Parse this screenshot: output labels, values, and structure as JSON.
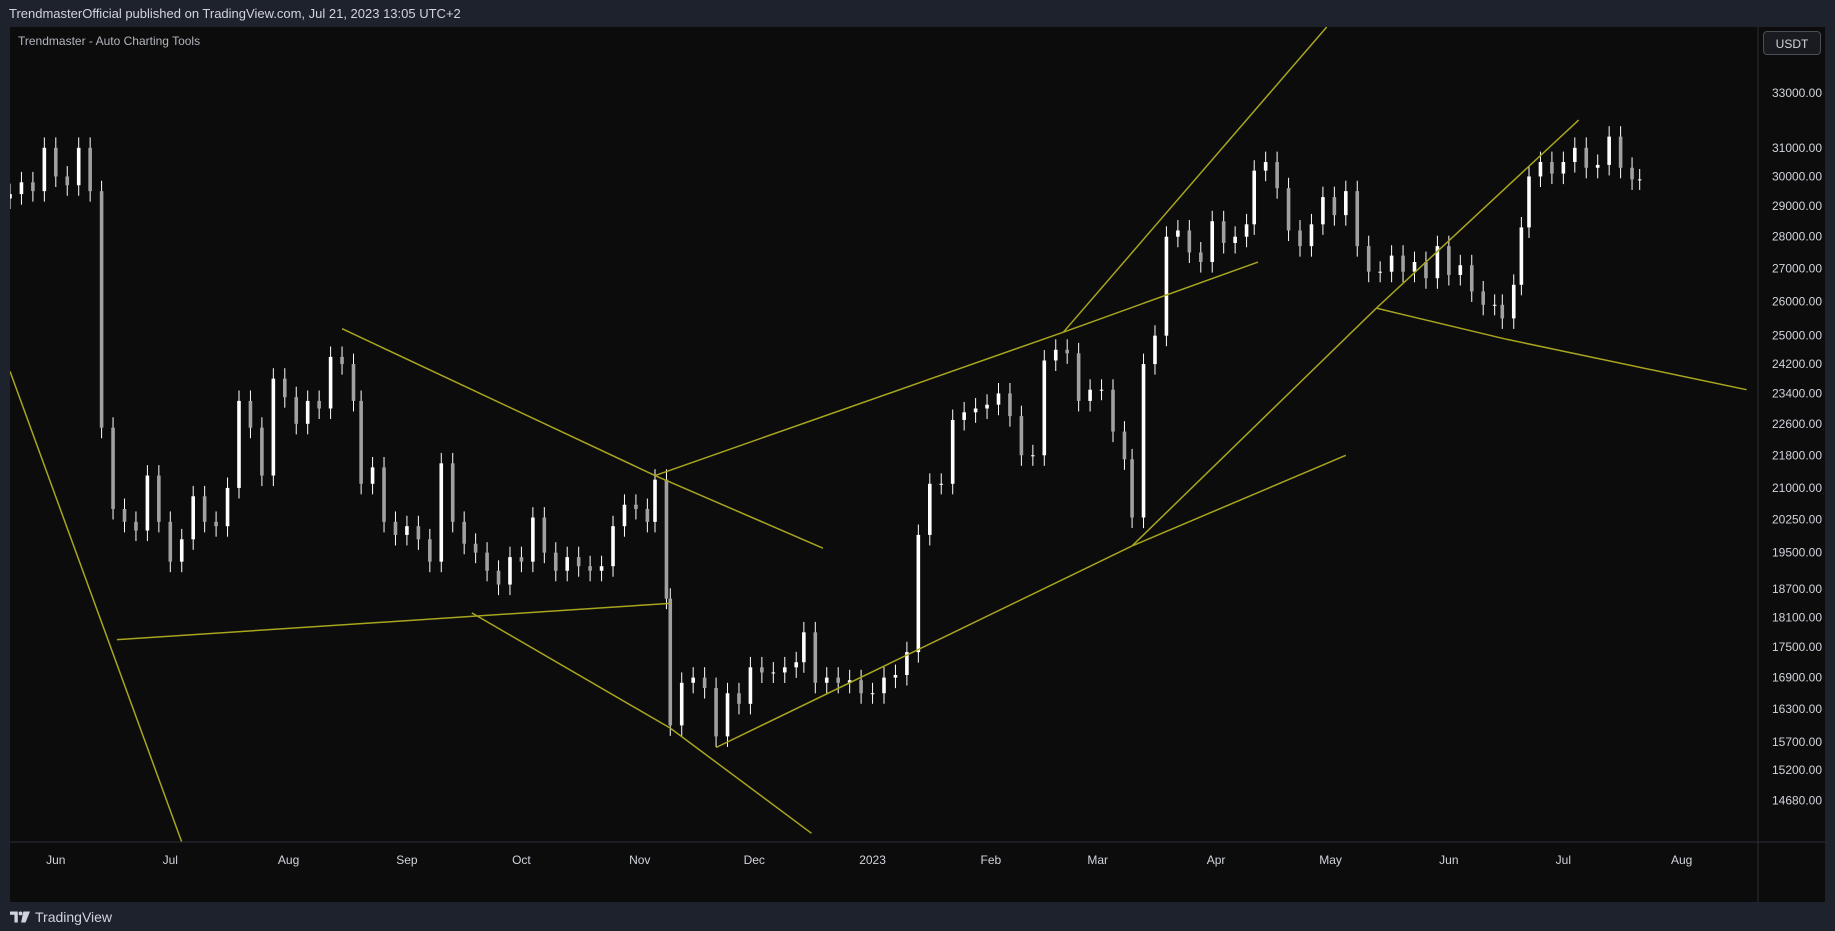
{
  "header": {
    "published_text": "TrendmasterOfficial published on TradingView.com, Jul 21, 2023 13:05 UTC+2"
  },
  "chart_header": {
    "title": "Trendmaster - Auto Charting Tools",
    "currency": "USDT"
  },
  "footer": {
    "logo_text": "TradingView",
    "logo_icon": "tradingview-logo-icon"
  },
  "colors": {
    "background": "#0c0c0c",
    "frame": "#1e222d",
    "candle": "#ffffff",
    "trendline": "#a8a51e",
    "text": "#d1d4dc",
    "axis_line": "#2a2e39"
  },
  "chart_data": {
    "type": "candlestick",
    "title": "Trendmaster - Auto Charting Tools",
    "y_scale": "log",
    "ylim": [
      14000,
      35600
    ],
    "x_range": [
      "2022-05-20",
      "2023-08-21"
    ],
    "y_ticks": [
      33000,
      31000,
      30000,
      29000,
      28000,
      27000,
      26000,
      25000,
      24200,
      23400,
      22600,
      21800,
      21000,
      20250,
      19500,
      18700,
      18100,
      17500,
      16900,
      16300,
      15700,
      15200,
      14680
    ],
    "y_tick_labels": [
      "33000.00",
      "31000.00",
      "30000.00",
      "29000.00",
      "28000.00",
      "27000.00",
      "26000.00",
      "25000.00",
      "24200.00",
      "23400.00",
      "22600.00",
      "21800.00",
      "21000.00",
      "20250.00",
      "19500.00",
      "18700.00",
      "18100.00",
      "17500.00",
      "16900.00",
      "16300.00",
      "15700.00",
      "15200.00",
      "14680.00"
    ],
    "x_ticks": [
      {
        "label": "Jun",
        "date": "2022-06-01"
      },
      {
        "label": "Jul",
        "date": "2022-07-01"
      },
      {
        "label": "Aug",
        "date": "2022-08-01"
      },
      {
        "label": "Sep",
        "date": "2022-09-01"
      },
      {
        "label": "Oct",
        "date": "2022-10-01"
      },
      {
        "label": "Nov",
        "date": "2022-11-01"
      },
      {
        "label": "Dec",
        "date": "2022-12-01"
      },
      {
        "label": "2023",
        "date": "2023-01-01"
      },
      {
        "label": "Feb",
        "date": "2023-02-01"
      },
      {
        "label": "Mar",
        "date": "2023-03-01"
      },
      {
        "label": "Apr",
        "date": "2023-04-01"
      },
      {
        "label": "May",
        "date": "2023-05-01"
      },
      {
        "label": "Jun",
        "date": "2023-06-01"
      },
      {
        "label": "Jul",
        "date": "2023-07-01"
      },
      {
        "label": "Aug",
        "date": "2023-08-01"
      }
    ],
    "closes": [
      [
        "2022-05-20",
        29400
      ],
      [
        "2022-05-23",
        29800
      ],
      [
        "2022-05-26",
        29500
      ],
      [
        "2022-05-29",
        31000
      ],
      [
        "2022-06-01",
        30000
      ],
      [
        "2022-06-04",
        29700
      ],
      [
        "2022-06-07",
        31000
      ],
      [
        "2022-06-10",
        29500
      ],
      [
        "2022-06-13",
        22500
      ],
      [
        "2022-06-16",
        20500
      ],
      [
        "2022-06-19",
        20200
      ],
      [
        "2022-06-22",
        20000
      ],
      [
        "2022-06-25",
        21300
      ],
      [
        "2022-06-28",
        20200
      ],
      [
        "2022-07-01",
        19300
      ],
      [
        "2022-07-04",
        19800
      ],
      [
        "2022-07-07",
        20800
      ],
      [
        "2022-07-10",
        20200
      ],
      [
        "2022-07-13",
        20100
      ],
      [
        "2022-07-16",
        21000
      ],
      [
        "2022-07-19",
        23200
      ],
      [
        "2022-07-22",
        22500
      ],
      [
        "2022-07-25",
        21300
      ],
      [
        "2022-07-28",
        23800
      ],
      [
        "2022-07-31",
        23300
      ],
      [
        "2022-08-03",
        22600
      ],
      [
        "2022-08-06",
        23200
      ],
      [
        "2022-08-09",
        23000
      ],
      [
        "2022-08-12",
        24400
      ],
      [
        "2022-08-15",
        24200
      ],
      [
        "2022-08-18",
        23200
      ],
      [
        "2022-08-20",
        21100
      ],
      [
        "2022-08-23",
        21500
      ],
      [
        "2022-08-26",
        20200
      ],
      [
        "2022-08-29",
        19900
      ],
      [
        "2022-09-01",
        20100
      ],
      [
        "2022-09-04",
        19800
      ],
      [
        "2022-09-07",
        19300
      ],
      [
        "2022-09-10",
        21600
      ],
      [
        "2022-09-13",
        20200
      ],
      [
        "2022-09-16",
        19700
      ],
      [
        "2022-09-19",
        19500
      ],
      [
        "2022-09-22",
        19100
      ],
      [
        "2022-09-25",
        18800
      ],
      [
        "2022-09-28",
        19400
      ],
      [
        "2022-10-01",
        19300
      ],
      [
        "2022-10-04",
        20300
      ],
      [
        "2022-10-07",
        19500
      ],
      [
        "2022-10-10",
        19100
      ],
      [
        "2022-10-13",
        19400
      ],
      [
        "2022-10-16",
        19200
      ],
      [
        "2022-10-19",
        19100
      ],
      [
        "2022-10-22",
        19200
      ],
      [
        "2022-10-25",
        20100
      ],
      [
        "2022-10-28",
        20600
      ],
      [
        "2022-10-31",
        20500
      ],
      [
        "2022-11-03",
        20200
      ],
      [
        "2022-11-05",
        21200
      ],
      [
        "2022-11-08",
        18500
      ],
      [
        "2022-11-09",
        16000
      ],
      [
        "2022-11-12",
        16800
      ],
      [
        "2022-11-15",
        16900
      ],
      [
        "2022-11-18",
        16700
      ],
      [
        "2022-11-21",
        15800
      ],
      [
        "2022-11-24",
        16600
      ],
      [
        "2022-11-27",
        16400
      ],
      [
        "2022-11-30",
        17100
      ],
      [
        "2022-12-03",
        17000
      ],
      [
        "2022-12-06",
        17000
      ],
      [
        "2022-12-09",
        17100
      ],
      [
        "2022-12-12",
        17200
      ],
      [
        "2022-12-14",
        17800
      ],
      [
        "2022-12-17",
        16800
      ],
      [
        "2022-12-20",
        16900
      ],
      [
        "2022-12-23",
        16800
      ],
      [
        "2022-12-26",
        16850
      ],
      [
        "2022-12-29",
        16600
      ],
      [
        "2023-01-01",
        16600
      ],
      [
        "2023-01-04",
        16900
      ],
      [
        "2023-01-07",
        16950
      ],
      [
        "2023-01-10",
        17400
      ],
      [
        "2023-01-13",
        19900
      ],
      [
        "2023-01-16",
        21100
      ],
      [
        "2023-01-19",
        21100
      ],
      [
        "2023-01-22",
        22700
      ],
      [
        "2023-01-25",
        22900
      ],
      [
        "2023-01-28",
        23000
      ],
      [
        "2023-01-31",
        23100
      ],
      [
        "2023-02-03",
        23400
      ],
      [
        "2023-02-06",
        22800
      ],
      [
        "2023-02-09",
        21800
      ],
      [
        "2023-02-12",
        21800
      ],
      [
        "2023-02-15",
        24300
      ],
      [
        "2023-02-18",
        24600
      ],
      [
        "2023-02-21",
        24500
      ],
      [
        "2023-02-24",
        23200
      ],
      [
        "2023-02-27",
        23500
      ],
      [
        "2023-03-02",
        23500
      ],
      [
        "2023-03-05",
        22400
      ],
      [
        "2023-03-08",
        21700
      ],
      [
        "2023-03-10",
        20300
      ],
      [
        "2023-03-13",
        24200
      ],
      [
        "2023-03-16",
        25000
      ],
      [
        "2023-03-19",
        28000
      ],
      [
        "2023-03-22",
        28200
      ],
      [
        "2023-03-25",
        27500
      ],
      [
        "2023-03-28",
        27200
      ],
      [
        "2023-03-31",
        28500
      ],
      [
        "2023-04-03",
        27800
      ],
      [
        "2023-04-06",
        28000
      ],
      [
        "2023-04-09",
        28400
      ],
      [
        "2023-04-11",
        30200
      ],
      [
        "2023-04-14",
        30500
      ],
      [
        "2023-04-17",
        29600
      ],
      [
        "2023-04-20",
        28200
      ],
      [
        "2023-04-23",
        27700
      ],
      [
        "2023-04-26",
        28400
      ],
      [
        "2023-04-29",
        29300
      ],
      [
        "2023-05-02",
        28700
      ],
      [
        "2023-05-05",
        29500
      ],
      [
        "2023-05-08",
        27700
      ],
      [
        "2023-05-11",
        26900
      ],
      [
        "2023-05-14",
        26900
      ],
      [
        "2023-05-17",
        27400
      ],
      [
        "2023-05-20",
        26900
      ],
      [
        "2023-05-23",
        27200
      ],
      [
        "2023-05-26",
        26700
      ],
      [
        "2023-05-29",
        27700
      ],
      [
        "2023-06-01",
        26800
      ],
      [
        "2023-06-04",
        27100
      ],
      [
        "2023-06-07",
        26300
      ],
      [
        "2023-06-10",
        25900
      ],
      [
        "2023-06-13",
        25900
      ],
      [
        "2023-06-15",
        25500
      ],
      [
        "2023-06-18",
        26500
      ],
      [
        "2023-06-20",
        28300
      ],
      [
        "2023-06-22",
        30000
      ],
      [
        "2023-06-25",
        30500
      ],
      [
        "2023-06-28",
        30100
      ],
      [
        "2023-07-01",
        30500
      ],
      [
        "2023-07-04",
        31000
      ],
      [
        "2023-07-07",
        30300
      ],
      [
        "2023-07-10",
        30400
      ],
      [
        "2023-07-13",
        31400
      ],
      [
        "2023-07-16",
        30300
      ],
      [
        "2023-07-19",
        29900
      ],
      [
        "2023-07-21",
        29900
      ]
    ],
    "trendlines": [
      {
        "from": [
          "2022-05-20",
          24000
        ],
        "to": [
          "2022-07-04",
          14000
        ]
      },
      {
        "from": [
          "2022-06-17",
          17650
        ],
        "to": [
          "2022-11-09",
          18400
        ]
      },
      {
        "from": [
          "2022-08-15",
          25200
        ],
        "to": [
          "2022-11-05",
          21300
        ]
      },
      {
        "from": [
          "2022-11-05",
          21300
        ],
        "to": [
          "2022-12-19",
          19600
        ]
      },
      {
        "from": [
          "2022-09-18",
          18200
        ],
        "to": [
          "2022-11-09",
          15950
        ]
      },
      {
        "from": [
          "2022-11-09",
          15950
        ],
        "to": [
          "2022-12-16",
          14140
        ]
      },
      {
        "from": [
          "2022-11-05",
          21300
        ],
        "to": [
          "2023-02-20",
          25100
        ]
      },
      {
        "from": [
          "2023-02-20",
          25100
        ],
        "to": [
          "2023-04-12",
          27200
        ]
      },
      {
        "from": [
          "2023-02-20",
          25100
        ],
        "to": [
          "2023-04-30",
          35600
        ]
      },
      {
        "from": [
          "2022-11-21",
          15600
        ],
        "to": [
          "2023-03-10",
          19650
        ]
      },
      {
        "from": [
          "2023-03-10",
          19650
        ],
        "to": [
          "2023-05-05",
          21800
        ]
      },
      {
        "from": [
          "2023-03-10",
          19650
        ],
        "to": [
          "2023-05-13",
          25800
        ]
      },
      {
        "from": [
          "2023-05-13",
          25800
        ],
        "to": [
          "2023-07-05",
          32000
        ]
      },
      {
        "from": [
          "2023-05-13",
          25800
        ],
        "to": [
          "2023-06-16",
          24900
        ]
      },
      {
        "from": [
          "2023-06-16",
          24900
        ],
        "to": [
          "2023-08-18",
          23500
        ]
      }
    ]
  }
}
